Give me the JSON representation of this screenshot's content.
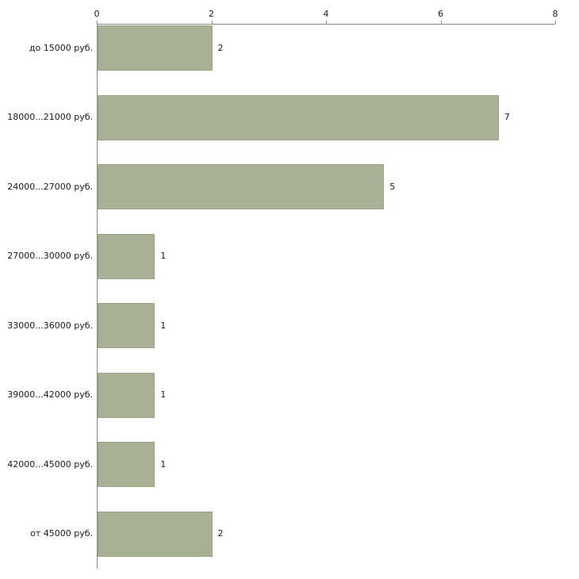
{
  "chart_data": {
    "type": "bar",
    "orientation": "horizontal",
    "title": "",
    "categories": [
      "до 15000 руб.",
      "18000...21000 руб.",
      "24000...27000 руб.",
      "27000...30000 руб.",
      "33000...36000 руб.",
      "39000...42000 руб.",
      "42000...45000 руб.",
      "от 45000 руб."
    ],
    "values": [
      2,
      7,
      5,
      1,
      1,
      1,
      1,
      2
    ],
    "value_labels": [
      "2",
      "7",
      "5",
      "1",
      "1",
      "1",
      "1",
      "2"
    ],
    "xlim": [
      0,
      8
    ],
    "x_ticks": [
      "0",
      "2",
      "4",
      "6",
      "8"
    ],
    "grid": false,
    "legend_position": "none",
    "axis_position": "top-left",
    "bar_color": "#a9b194",
    "bar_border_color": "#99a187",
    "axis_color": "#888888",
    "text_color": "#1a1a1a",
    "background_color": "#ffffff"
  }
}
